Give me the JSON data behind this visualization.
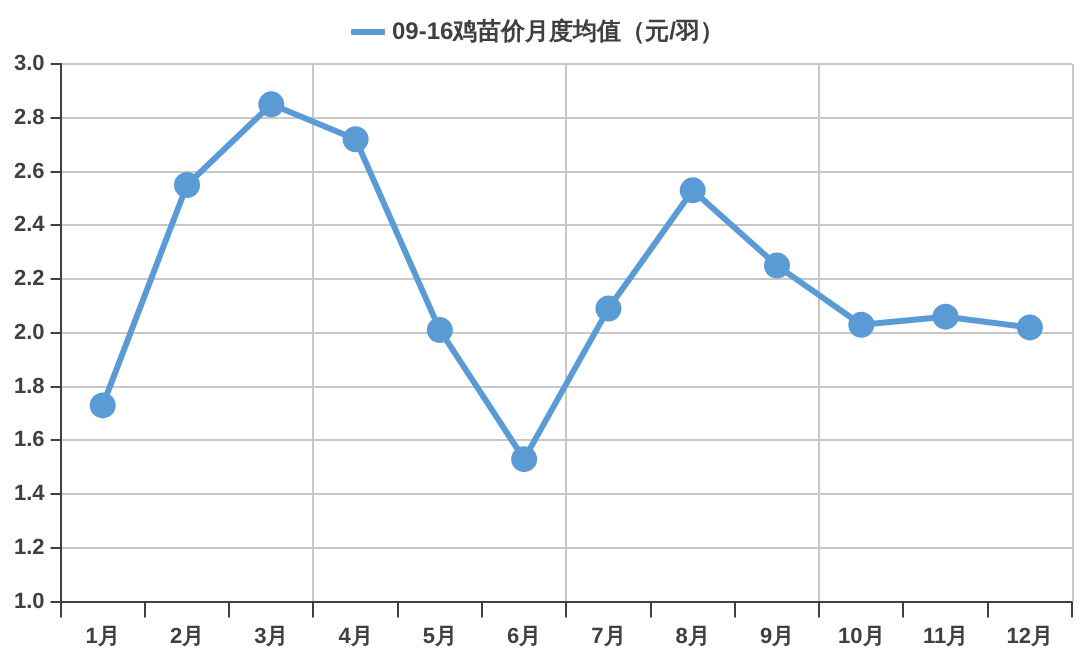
{
  "chart_data": {
    "type": "line",
    "categories": [
      "1月",
      "2月",
      "3月",
      "4月",
      "5月",
      "6月",
      "7月",
      "8月",
      "9月",
      "10月",
      "11月",
      "12月"
    ],
    "series": [
      {
        "name": "09-16鸡苗价月度均值（元/羽）",
        "color": "#5b9bd5",
        "values": [
          1.73,
          2.55,
          2.85,
          2.72,
          2.01,
          1.53,
          2.09,
          2.53,
          2.25,
          2.03,
          2.06,
          2.02
        ]
      }
    ],
    "ylim": [
      1.0,
      3.0
    ],
    "yticks": [
      {
        "value": 1.0,
        "label": "1.0"
      },
      {
        "value": 1.2,
        "label": "1.2"
      },
      {
        "value": 1.4,
        "label": "1.4"
      },
      {
        "value": 1.6,
        "label": "1.6"
      },
      {
        "value": 1.8,
        "label": "1.8"
      },
      {
        "value": 2.0,
        "label": "2.0"
      },
      {
        "value": 2.2,
        "label": "2.2"
      },
      {
        "value": 2.4,
        "label": "2.4"
      },
      {
        "value": 2.6,
        "label": "2.6"
      },
      {
        "value": 2.8,
        "label": "2.8"
      },
      {
        "value": 3.0,
        "label": "3.0"
      }
    ],
    "grid": true,
    "legend": "top",
    "marker": "circle",
    "line_style": "solid"
  }
}
